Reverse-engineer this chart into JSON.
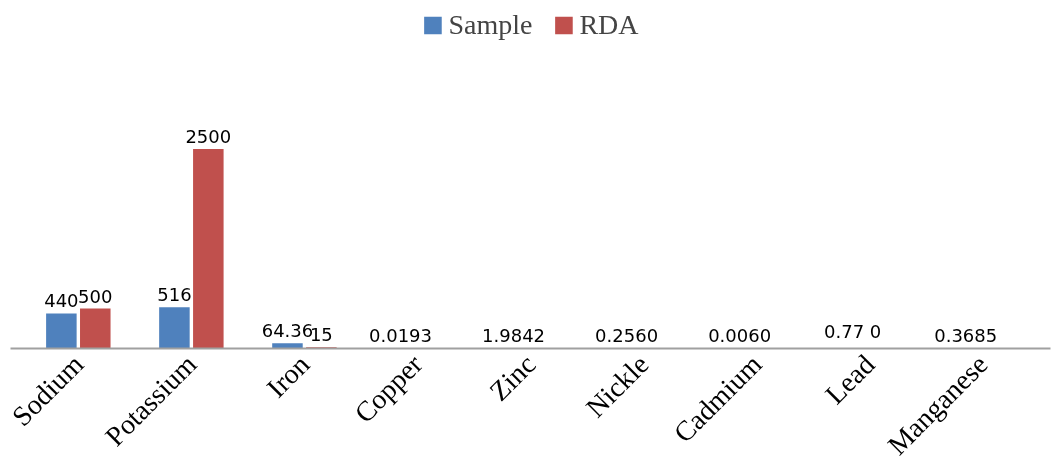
{
  "chart_data": {
    "type": "bar",
    "categories": [
      "Sodium",
      "Potassium",
      "Iron",
      "Copper",
      "Zinc",
      "Nickle",
      "Cadmium",
      "Lead",
      "Manganese"
    ],
    "series": [
      {
        "name": "Sample",
        "color": "#4f81bd",
        "values": [
          440,
          516,
          64.36,
          0.0193,
          1.9842,
          0.256,
          0.006,
          0.77,
          0.3685
        ],
        "value_labels": [
          "440",
          "516",
          "64.36",
          "0.0193",
          "1.9842",
          "0.2560",
          "0.0060",
          "0.77 0",
          "0.3685"
        ]
      },
      {
        "name": "RDA",
        "color": "#c0504d",
        "values": [
          500,
          2500,
          15,
          null,
          null,
          null,
          null,
          null,
          null
        ],
        "value_labels": [
          "500",
          "2500",
          "15",
          null,
          null,
          null,
          null,
          null,
          null
        ]
      }
    ],
    "ylim": [
      0,
      4300
    ],
    "legend": "top",
    "grid": false,
    "data_labels": true
  }
}
